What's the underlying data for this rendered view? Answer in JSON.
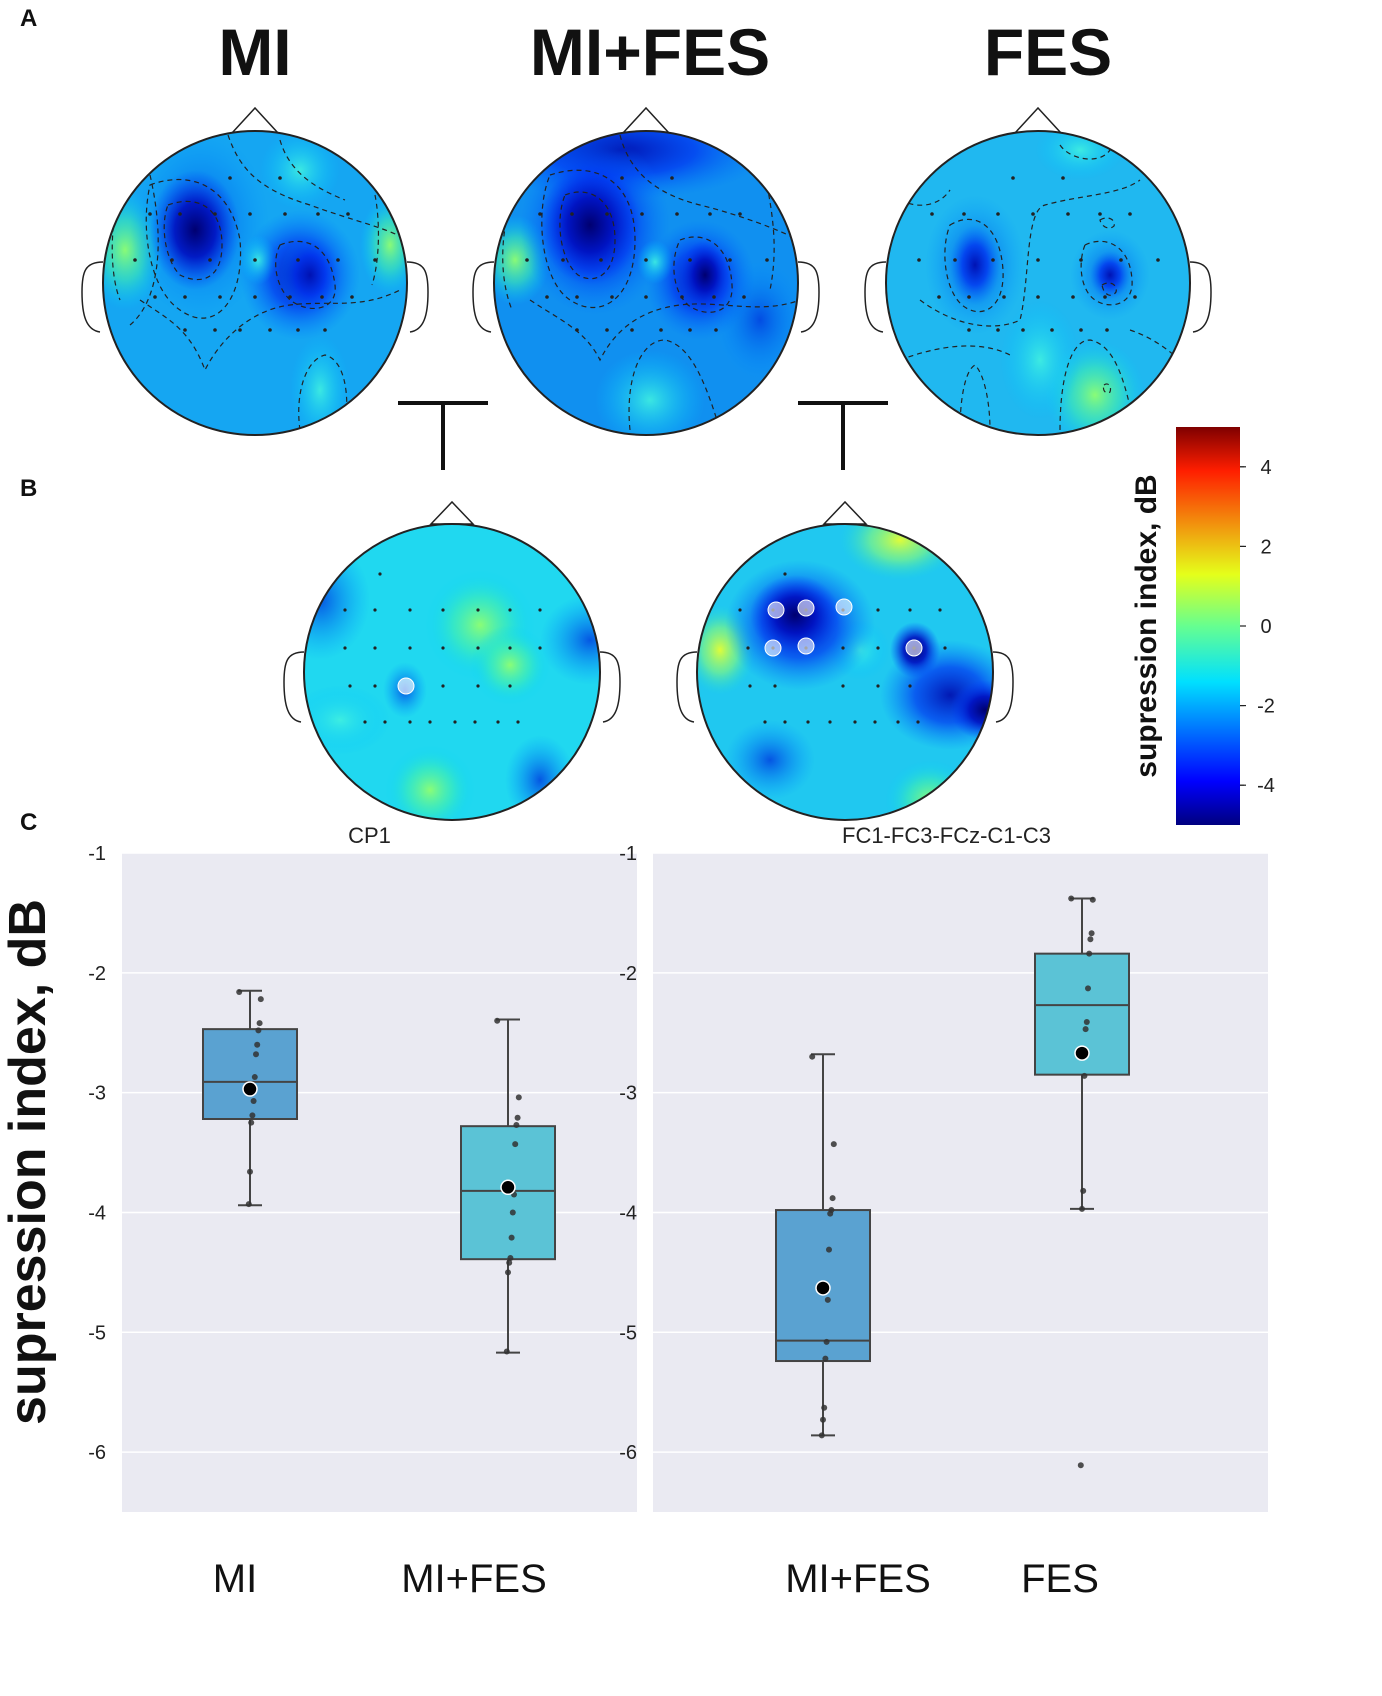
{
  "panels": {
    "a": "A",
    "b": "B",
    "c": "C"
  },
  "topomaps": {
    "conditions": [
      "MI",
      "MI+FES",
      "FES"
    ],
    "difference_maps": [
      {
        "comparison": "MI vs MI+FES",
        "highlighted_electrodes": [
          "CP1"
        ]
      },
      {
        "comparison": "MI+FES vs FES",
        "highlighted_electrodes": [
          "FC1",
          "FC3",
          "FCz",
          "C1",
          "C3"
        ]
      }
    ]
  },
  "colorbar": {
    "label": "supression index, dB",
    "range": [
      -5,
      5
    ],
    "ticks": [
      "4",
      "2",
      "0",
      "-2",
      "-4"
    ],
    "colormap": "jet"
  },
  "chart_data": [
    {
      "type": "box",
      "title": "CP1",
      "ylabel": "supression index, dB",
      "ylim": [
        -6.5,
        -1
      ],
      "yticks": [
        "-1",
        "-2",
        "-3",
        "-4",
        "-5",
        "-6"
      ],
      "categories": [
        "MI",
        "MI+FES"
      ],
      "boxes": [
        {
          "name": "MI",
          "q1": -3.22,
          "median": -2.91,
          "q3": -2.47,
          "whisker_low": -3.94,
          "whisker_high": -2.15,
          "mean": -2.97,
          "color": "#5aa2d1",
          "points": [
            -2.16,
            -2.22,
            -2.42,
            -2.48,
            -2.6,
            -2.68,
            -2.87,
            -3.07,
            -3.19,
            -3.25,
            -3.66,
            -3.93
          ]
        },
        {
          "name": "MI+FES",
          "q1": -4.39,
          "median": -3.82,
          "q3": -3.28,
          "whisker_low": -5.17,
          "whisker_high": -2.39,
          "mean": -3.79,
          "color": "#5bc3d6",
          "points": [
            -2.4,
            -3.04,
            -3.21,
            -3.27,
            -3.43,
            -3.85,
            -4.0,
            -4.21,
            -4.38,
            -4.42,
            -4.5,
            -5.16
          ]
        }
      ]
    },
    {
      "type": "box",
      "title": "FC1-FC3-FCz-C1-C3",
      "ylabel": "supression index, dB",
      "ylim": [
        -6.5,
        -1
      ],
      "yticks": [
        "-1",
        "-2",
        "-3",
        "-4",
        "-5",
        "-6"
      ],
      "categories": [
        "MI+FES",
        "FES"
      ],
      "boxes": [
        {
          "name": "MI+FES",
          "q1": -5.24,
          "median": -5.07,
          "q3": -3.98,
          "whisker_low": -5.86,
          "whisker_high": -2.68,
          "mean": -4.63,
          "color": "#5aa2d1",
          "points": [
            -2.7,
            -3.43,
            -3.88,
            -3.98,
            -4.01,
            -4.31,
            -4.73,
            -5.08,
            -5.22,
            -5.63,
            -5.73,
            -5.86
          ]
        },
        {
          "name": "FES",
          "q1": -2.85,
          "median": -2.27,
          "q3": -1.84,
          "whisker_low": -3.97,
          "whisker_high": -1.38,
          "mean": -2.67,
          "color": "#5bc3d6",
          "points": [
            -1.38,
            -1.39,
            -1.67,
            -1.72,
            -1.84,
            -2.13,
            -2.41,
            -2.47,
            -2.86,
            -3.82,
            -3.97,
            -6.11
          ]
        }
      ]
    }
  ]
}
